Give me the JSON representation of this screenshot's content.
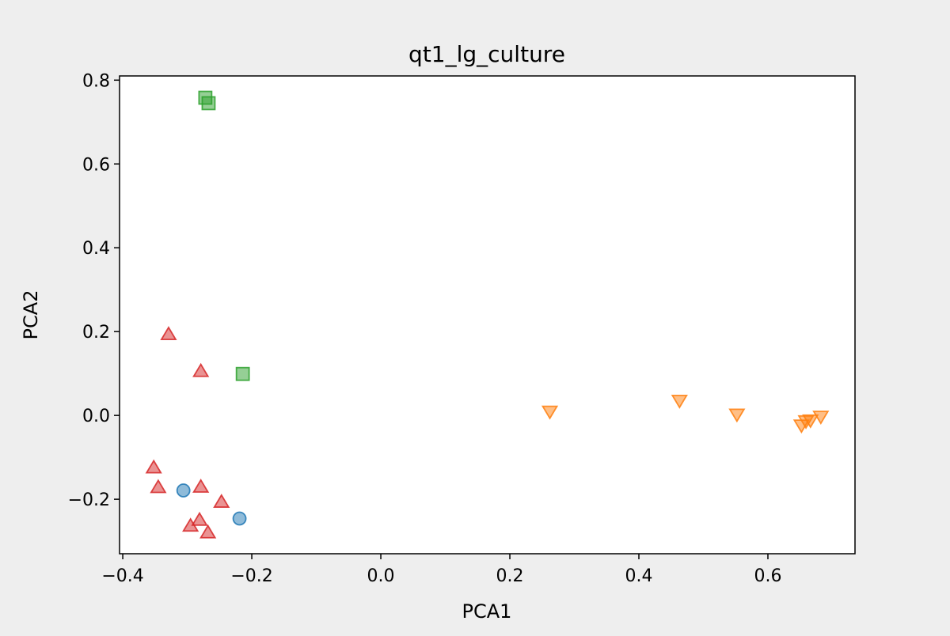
{
  "chart_data": {
    "type": "scatter",
    "title": "qt1_lg_culture",
    "xlabel": "PCA1",
    "ylabel": "PCA2",
    "xlim": [
      -0.405,
      0.735
    ],
    "ylim": [
      -0.33,
      0.81
    ],
    "xticks": [
      -0.4,
      -0.2,
      0.0,
      0.2,
      0.4,
      0.6
    ],
    "xtick_labels": [
      "−0.4",
      "−0.2",
      "0.0",
      "0.2",
      "0.4",
      "0.6"
    ],
    "yticks": [
      -0.2,
      0.0,
      0.2,
      0.4,
      0.6,
      0.8
    ],
    "ytick_labels": [
      "−0.2",
      "0.0",
      "0.2",
      "0.4",
      "0.6",
      "0.8"
    ],
    "grid": false,
    "series": [
      {
        "marker": "circle",
        "color": "#1f77b4",
        "x": [
          -0.306,
          -0.219
        ],
        "y": [
          -0.179,
          -0.246
        ]
      },
      {
        "marker": "triangle-down",
        "color": "#ff7f0e",
        "x": [
          0.262,
          0.463,
          0.552,
          0.652,
          0.659,
          0.666,
          0.682
        ],
        "y": [
          0.011,
          0.037,
          0.004,
          -0.022,
          -0.012,
          -0.01,
          -0.001
        ]
      },
      {
        "marker": "square",
        "color": "#2ca02c",
        "x": [
          -0.272,
          -0.267,
          -0.214
        ],
        "y": [
          0.758,
          0.745,
          0.099
        ]
      },
      {
        "marker": "triangle-up",
        "color": "#d62728",
        "x": [
          -0.329,
          -0.279,
          -0.352,
          -0.345,
          -0.279,
          -0.247,
          -0.281,
          -0.295,
          -0.268
        ],
        "y": [
          0.192,
          0.104,
          -0.126,
          -0.173,
          -0.172,
          -0.208,
          -0.251,
          -0.265,
          -0.281
        ]
      }
    ]
  }
}
